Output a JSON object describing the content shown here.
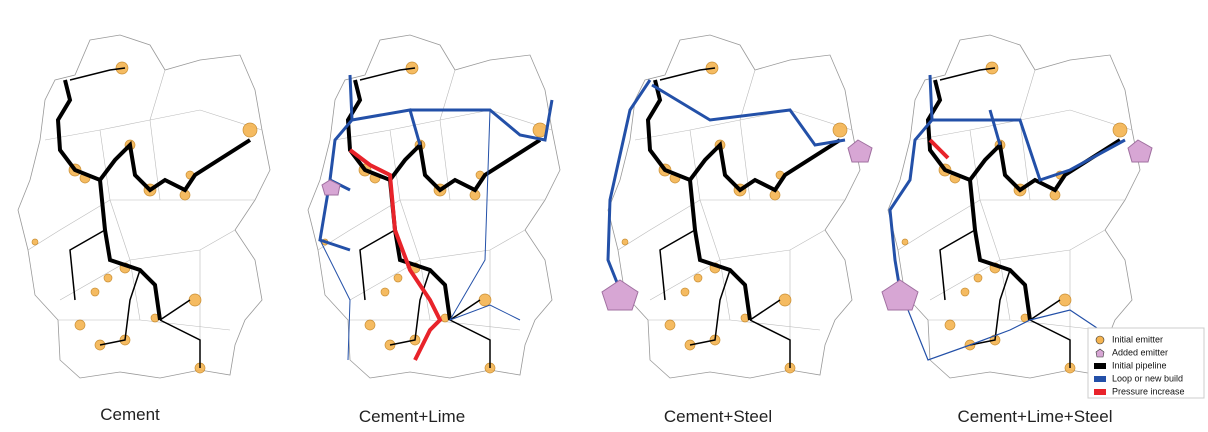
{
  "panels": [
    {
      "caption": "Cement"
    },
    {
      "caption": "Cement+Lime"
    },
    {
      "caption": "Cement+Steel"
    },
    {
      "caption": "Cement+Lime+Steel"
    }
  ],
  "legend": {
    "items": [
      {
        "label": "Initial emitter",
        "color": "#f5b451"
      },
      {
        "label": "Added emitter",
        "color": "#d7a6d4"
      },
      {
        "label": "Initial pipeline",
        "color": "#000000"
      },
      {
        "label": "Loop or new build",
        "color": "#2350a8"
      },
      {
        "label": "Pressure increase",
        "color": "#e8232a"
      }
    ]
  }
}
